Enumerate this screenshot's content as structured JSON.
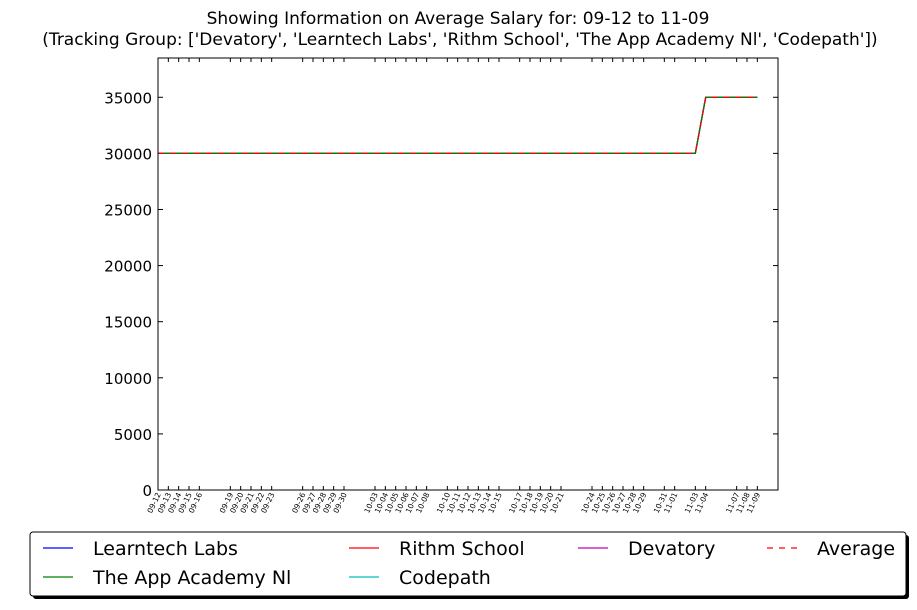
{
  "chart_data": {
    "type": "line",
    "title": "Showing Information on Average Salary for: 09-12 to 11-09",
    "subtitle": "(Tracking Group: ['Devatory', 'Learntech Labs', 'Rithm School', 'The App Academy Nl', 'Codepath'])",
    "x": [
      "09-12",
      "09-13",
      "09-14",
      "09-15",
      "09-16",
      "09-19",
      "09-20",
      "09-21",
      "09-22",
      "09-23",
      "09-26",
      "09-27",
      "09-28",
      "09-29",
      "09-30",
      "10-03",
      "10-04",
      "10-05",
      "10-06",
      "10-07",
      "10-08",
      "10-10",
      "10-11",
      "10-12",
      "10-13",
      "10-14",
      "10-15",
      "10-17",
      "10-18",
      "10-19",
      "10-20",
      "10-21",
      "10-24",
      "10-25",
      "10-26",
      "10-27",
      "10-28",
      "10-29",
      "10-31",
      "11-01",
      "11-03",
      "11-04",
      "11-07",
      "11-08",
      "11-09"
    ],
    "xlim": [
      "09-12",
      "11-11"
    ],
    "series": [
      {
        "name": "Learntech Labs",
        "color": "#0000ff",
        "values": [
          30000,
          30000,
          30000,
          30000,
          30000,
          30000,
          30000,
          30000,
          30000,
          30000,
          30000,
          30000,
          30000,
          30000,
          30000,
          30000,
          30000,
          30000,
          30000,
          30000,
          30000,
          30000,
          30000,
          30000,
          30000,
          30000,
          30000,
          30000,
          30000,
          30000,
          30000,
          30000,
          30000,
          30000,
          30000,
          30000,
          30000,
          30000,
          30000,
          30000,
          30000,
          35000,
          35000,
          35000,
          35000
        ]
      },
      {
        "name": "The App Academy Nl",
        "color": "#008000",
        "values": [
          30000,
          30000,
          30000,
          30000,
          30000,
          30000,
          30000,
          30000,
          30000,
          30000,
          30000,
          30000,
          30000,
          30000,
          30000,
          30000,
          30000,
          30000,
          30000,
          30000,
          30000,
          30000,
          30000,
          30000,
          30000,
          30000,
          30000,
          30000,
          30000,
          30000,
          30000,
          30000,
          30000,
          30000,
          30000,
          30000,
          30000,
          30000,
          30000,
          30000,
          30000,
          35000,
          35000,
          35000,
          35000
        ]
      },
      {
        "name": "Rithm School",
        "color": "#ff0000",
        "values": [
          30000,
          30000,
          30000,
          30000,
          30000,
          30000,
          30000,
          30000,
          30000,
          30000,
          30000,
          30000,
          30000,
          30000,
          30000,
          30000,
          30000,
          30000,
          30000,
          30000,
          30000,
          30000,
          30000,
          30000,
          30000,
          30000,
          30000,
          30000,
          30000,
          30000,
          30000,
          30000,
          30000,
          30000,
          30000,
          30000,
          30000,
          30000,
          30000,
          30000,
          30000,
          35000,
          35000,
          35000,
          35000
        ]
      },
      {
        "name": "Codepath",
        "color": "#00bfbf",
        "values": [
          30000,
          30000,
          30000,
          30000,
          30000,
          30000,
          30000,
          30000,
          30000,
          30000,
          30000,
          30000,
          30000,
          30000,
          30000,
          30000,
          30000,
          30000,
          30000,
          30000,
          30000,
          30000,
          30000,
          30000,
          30000,
          30000,
          30000,
          30000,
          30000,
          30000,
          30000,
          30000,
          30000,
          30000,
          30000,
          30000,
          30000,
          30000,
          30000,
          30000,
          30000,
          35000,
          35000,
          35000,
          35000
        ]
      },
      {
        "name": "Devatory",
        "color": "#bf00bf",
        "values": [
          30000,
          30000,
          30000,
          30000,
          30000,
          30000,
          30000,
          30000,
          30000,
          30000,
          30000,
          30000,
          30000,
          30000,
          30000,
          30000,
          30000,
          30000,
          30000,
          30000,
          30000,
          30000,
          30000,
          30000,
          30000,
          30000,
          30000,
          30000,
          30000,
          30000,
          30000,
          30000,
          30000,
          30000,
          30000,
          30000,
          30000,
          30000,
          30000,
          30000,
          30000,
          35000,
          35000,
          35000,
          35000
        ]
      },
      {
        "name": "Average",
        "color": "#ff0000",
        "dashed": true,
        "values": [
          30000,
          30000,
          30000,
          30000,
          30000,
          30000,
          30000,
          30000,
          30000,
          30000,
          30000,
          30000,
          30000,
          30000,
          30000,
          30000,
          30000,
          30000,
          30000,
          30000,
          30000,
          30000,
          30000,
          30000,
          30000,
          30000,
          30000,
          30000,
          30000,
          30000,
          30000,
          30000,
          30000,
          30000,
          30000,
          30000,
          30000,
          30000,
          30000,
          30000,
          30000,
          35000,
          35000,
          35000,
          35000
        ]
      }
    ],
    "ylim": [
      0,
      38500
    ],
    "yticks": [
      0,
      5000,
      10000,
      15000,
      20000,
      25000,
      30000,
      35000
    ],
    "legend": "below"
  }
}
